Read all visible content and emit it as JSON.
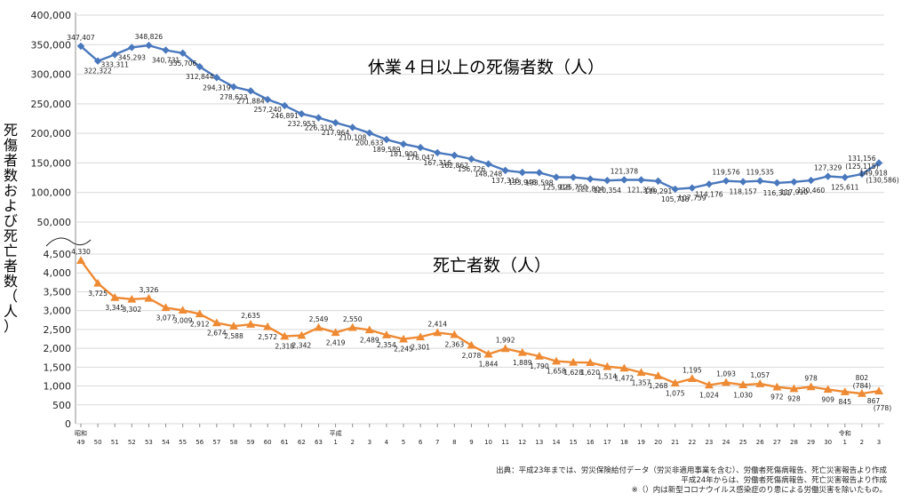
{
  "ylabel_chars": [
    "死",
    "傷",
    "者",
    "数",
    "お",
    "よ",
    "び",
    "死",
    "亡",
    "者",
    "数",
    "（",
    "人",
    "）"
  ],
  "x_labels": [
    "49",
    "50",
    "51",
    "52",
    "53",
    "54",
    "55",
    "56",
    "57",
    "58",
    "59",
    "60",
    "61",
    "62",
    "63",
    "1",
    "2",
    "3",
    "4",
    "5",
    "6",
    "7",
    "8",
    "9",
    "10",
    "11",
    "12",
    "13",
    "14",
    "15",
    "16",
    "17",
    "18",
    "19",
    "20",
    "21",
    "22",
    "23",
    "24",
    "25",
    "26",
    "27",
    "28",
    "29",
    "30",
    "1",
    "2",
    "3"
  ],
  "era_labels": [
    {
      "text": "昭和",
      "index": 0
    },
    {
      "text": "平成",
      "index": 15
    },
    {
      "text": "令和",
      "index": 45
    }
  ],
  "source_lines": [
    "出典：平成23年までは、労災保険給付データ（労災非適用事業を含む）、労働者死傷病報告、死亡災害報告より作成",
    "平成24年からは、労働者死傷病報告、死亡災害報告より作成",
    "※（）内は新型コロナウイルス感染症のり患による労働災害を除いたもの。"
  ],
  "colors": {
    "injury_line": "#4a78bd",
    "death_line": "#ee8a33"
  },
  "chart_data": [
    {
      "type": "line",
      "title": "休業４日以上の死傷者数（人）",
      "ylim": [
        50000,
        400000
      ],
      "yticks": [
        "50,000",
        "100,000",
        "150,000",
        "200,000",
        "250,000",
        "300,000",
        "350,000",
        "400,000"
      ],
      "categories": [
        "49",
        "50",
        "51",
        "52",
        "53",
        "54",
        "55",
        "56",
        "57",
        "58",
        "59",
        "60",
        "61",
        "62",
        "63",
        "1",
        "2",
        "3",
        "4",
        "5",
        "6",
        "7",
        "8",
        "9",
        "10",
        "11",
        "12",
        "13",
        "14",
        "15",
        "16",
        "17",
        "18",
        "19",
        "20",
        "21",
        "22",
        "23",
        "24",
        "25",
        "26",
        "27",
        "28",
        "29",
        "30",
        "1",
        "2",
        "3"
      ],
      "values": [
        347407,
        322322,
        333311,
        345293,
        348826,
        340731,
        335706,
        312844,
        294319,
        278623,
        271884,
        257240,
        246891,
        232953,
        226318,
        217964,
        210108,
        200633,
        189589,
        181900,
        176047,
        167316,
        162862,
        156726,
        148248,
        137316,
        133948,
        133598,
        125918,
        125750,
        122804,
        120354,
        121378,
        121356,
        119291,
        105718,
        107759,
        114176,
        119576,
        118157,
        119535,
        116311,
        117910,
        120460,
        127329,
        125611,
        131156,
        149918
      ],
      "labels": [
        "347,407",
        "322,322",
        "333,311",
        "345,293",
        "348,826",
        "340,731",
        "335,706",
        "312,844",
        "294,319",
        "278,623",
        "271,884",
        "257,240",
        "246,891",
        "232,953",
        "226,318",
        "217,964",
        "210,108",
        "200,633",
        "189,589",
        "181,900",
        "176,047",
        "167,316",
        "162,862",
        "156,726",
        "148,248",
        "137,316",
        "133,948",
        "133,598",
        "125,918",
        "125,750",
        "122,804",
        "120,354",
        "121,378",
        "121,356",
        "119,291",
        "105,718",
        "107,759",
        "114,176",
        "119,576",
        "118,157",
        "119,535",
        "116,311",
        "117,910",
        "120,460",
        "127,329",
        "125,611",
        "131,156",
        "149,918"
      ],
      "extra_labels": [
        {
          "index": 46,
          "text": "(125,115)"
        },
        {
          "index": 47,
          "text": "(130,586)"
        }
      ]
    },
    {
      "type": "line",
      "title": "死亡者数（人）",
      "ylim": [
        0,
        4500
      ],
      "yticks": [
        "0",
        "500",
        "1,000",
        "1,500",
        "2,000",
        "2,500",
        "3,000",
        "3,500",
        "4,000",
        "4,500"
      ],
      "categories": [
        "49",
        "50",
        "51",
        "52",
        "53",
        "54",
        "55",
        "56",
        "57",
        "58",
        "59",
        "60",
        "61",
        "62",
        "63",
        "1",
        "2",
        "3",
        "4",
        "5",
        "6",
        "7",
        "8",
        "9",
        "10",
        "11",
        "12",
        "13",
        "14",
        "15",
        "16",
        "17",
        "18",
        "19",
        "20",
        "21",
        "22",
        "23",
        "24",
        "25",
        "26",
        "27",
        "28",
        "29",
        "30",
        "1",
        "2",
        "3"
      ],
      "values": [
        4330,
        3725,
        3345,
        3302,
        3326,
        3077,
        3009,
        2912,
        2674,
        2588,
        2635,
        2572,
        2318,
        2342,
        2549,
        2419,
        2550,
        2489,
        2354,
        2245,
        2301,
        2414,
        2363,
        2078,
        1844,
        1992,
        1889,
        1790,
        1658,
        1628,
        1620,
        1514,
        1472,
        1357,
        1268,
        1075,
        1195,
        1024,
        1093,
        1030,
        1057,
        972,
        928,
        978,
        909,
        845,
        802,
        867
      ],
      "labels": [
        "4,330",
        "3,725",
        "3,345",
        "3,302",
        "3,326",
        "3,077",
        "3,009",
        "2,912",
        "2,674",
        "2,588",
        "2,635",
        "2,572",
        "2,318",
        "2,342",
        "2,549",
        "2,419",
        "2,550",
        "2,489",
        "2,354",
        "2,245",
        "2,301",
        "2,414",
        "2,363",
        "2,078",
        "1,844",
        "1,992",
        "1,889",
        "1,790",
        "1,658",
        "1,628",
        "1,620",
        "1,514",
        "1,472",
        "1,357",
        "1,268",
        "1,075",
        "1,195",
        "1,024",
        "1,093",
        "1,030",
        "1,057",
        "972",
        "928",
        "978",
        "909",
        "845",
        "802",
        "867"
      ],
      "extra_labels": [
        {
          "index": 46,
          "text": "(784)"
        },
        {
          "index": 47,
          "text": "(778)"
        }
      ]
    }
  ]
}
